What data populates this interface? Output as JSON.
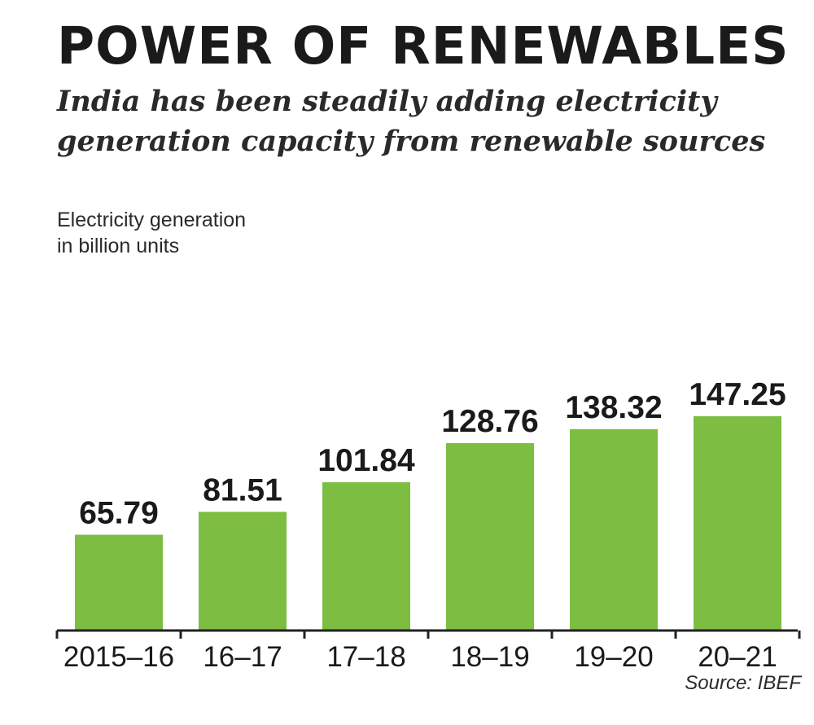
{
  "title": "POWER OF RENEWABLES",
  "subtitle_lines": [
    "India has been steadily adding electricity",
    "generation capacity from renewable sources"
  ],
  "unit_label_lines": [
    "Electricity generation",
    "in billion units"
  ],
  "source": "Source: IBEF",
  "colors": {
    "bar": "#7dbd42",
    "axis": "#222222",
    "text": "#1a1a1a"
  },
  "chart_data": {
    "type": "bar",
    "categories": [
      "2015–16",
      "16–17",
      "17–18",
      "18–19",
      "19–20",
      "20–21"
    ],
    "values": [
      65.79,
      81.51,
      101.84,
      128.76,
      138.32,
      147.25
    ],
    "value_labels": [
      "65.79",
      "81.51",
      "101.84",
      "128.76",
      "138.32",
      "147.25"
    ],
    "ylabel": "Electricity generation in billion units",
    "ylim": [
      0,
      160
    ],
    "grid": false,
    "legend": "none"
  }
}
